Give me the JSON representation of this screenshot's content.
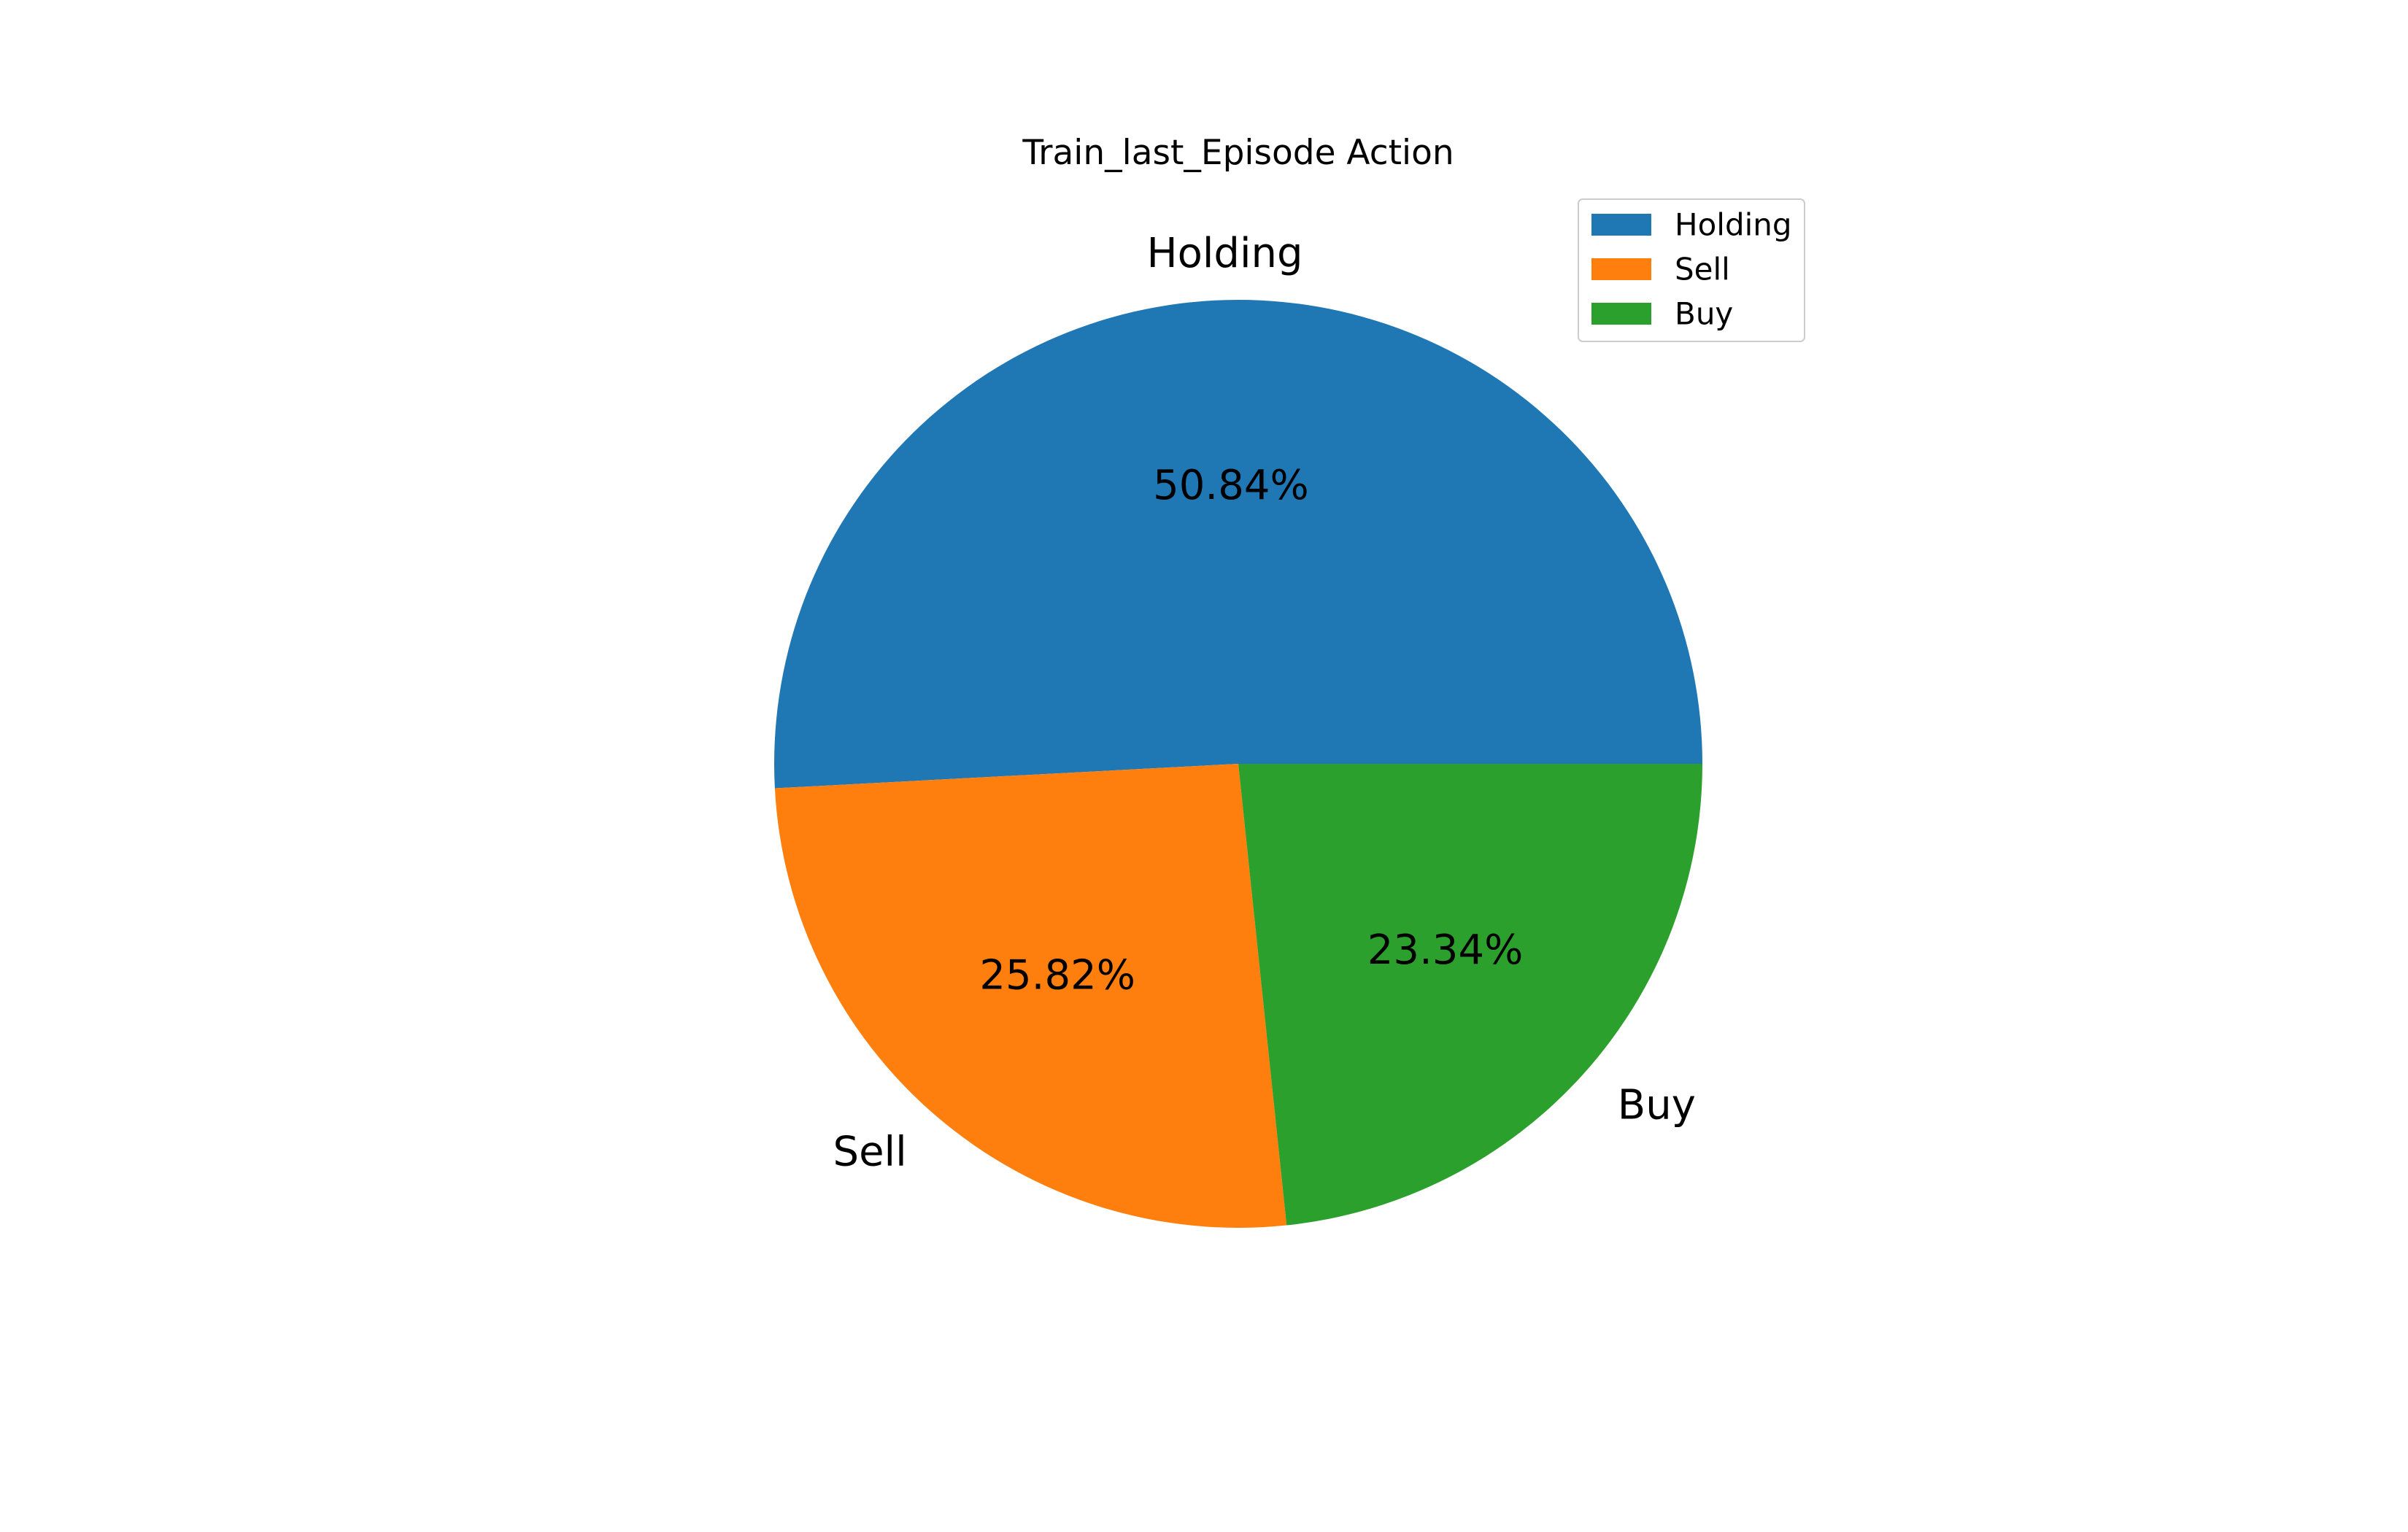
{
  "chart_data": {
    "type": "pie",
    "title": "Train_last_Episode Action",
    "slices": [
      {
        "label": "Holding",
        "value": 50.84,
        "pct_label": "50.84%",
        "color": "#1f77b4"
      },
      {
        "label": "Sell",
        "value": 25.82,
        "pct_label": "25.82%",
        "color": "#ff7f0e"
      },
      {
        "label": "Buy",
        "value": 23.34,
        "pct_label": "23.34%",
        "color": "#2ca02c"
      }
    ],
    "legend": {
      "placement": "upper-right",
      "entries": [
        "Holding",
        "Sell",
        "Buy"
      ]
    }
  }
}
